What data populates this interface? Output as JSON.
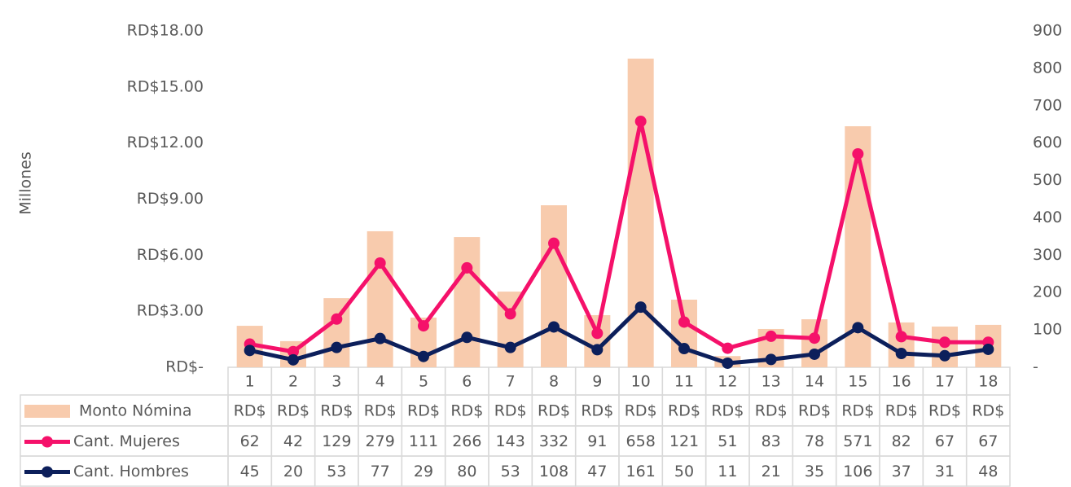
{
  "chart_data": {
    "type": "combo",
    "y_label": "Millones",
    "categories": [
      "1",
      "2",
      "3",
      "4",
      "5",
      "6",
      "7",
      "8",
      "9",
      "10",
      "11",
      "12",
      "13",
      "14",
      "15",
      "16",
      "17",
      "18"
    ],
    "ylim": [
      0,
      18
    ],
    "yticks": [
      {
        "value": 0,
        "label": "RD$-"
      },
      {
        "value": 3,
        "label": "RD$3.00"
      },
      {
        "value": 6,
        "label": "RD$6.00"
      },
      {
        "value": 9,
        "label": "RD$9.00"
      },
      {
        "value": 12,
        "label": "RD$12.00"
      },
      {
        "value": 15,
        "label": "RD$15.00"
      },
      {
        "value": 18,
        "label": "RD$18.00"
      }
    ],
    "y2lim": [
      0,
      900
    ],
    "y2ticks": [
      {
        "value": 0,
        "label": "-"
      },
      100,
      200,
      300,
      400,
      500,
      600,
      700,
      800,
      900
    ],
    "grid": false,
    "series": [
      {
        "name": "Monto Nómina",
        "type": "bar",
        "color": "#f8cbad",
        "values": [
          2.22,
          1.4,
          3.7,
          7.28,
          2.66,
          6.97,
          4.05,
          8.67,
          2.79,
          16.52,
          3.62,
          0.6,
          2.05,
          2.57,
          12.9,
          2.4,
          2.18,
          2.27
        ],
        "value_labels": [
          "RD$",
          "RD$",
          "RD$",
          "RD$",
          "RD$",
          "RD$",
          "RD$",
          "RD$",
          "RD$",
          "RD$",
          "RD$",
          "RD$",
          "RD$",
          "RD$",
          "RD$",
          "RD$",
          "RD$",
          "RD$"
        ]
      },
      {
        "name": "Cant. Mujeres",
        "type": "line",
        "axis": "y2",
        "color": "#f5116a",
        "values": [
          62,
          42,
          129,
          279,
          111,
          266,
          143,
          332,
          91,
          658,
          121,
          51,
          83,
          78,
          571,
          82,
          67,
          67
        ]
      },
      {
        "name": "Cant. Hombres",
        "type": "line",
        "axis": "y2",
        "color": "#0c1f5b",
        "values": [
          45,
          20,
          53,
          77,
          29,
          80,
          53,
          108,
          47,
          161,
          50,
          11,
          21,
          35,
          106,
          37,
          31,
          48
        ]
      }
    ]
  }
}
